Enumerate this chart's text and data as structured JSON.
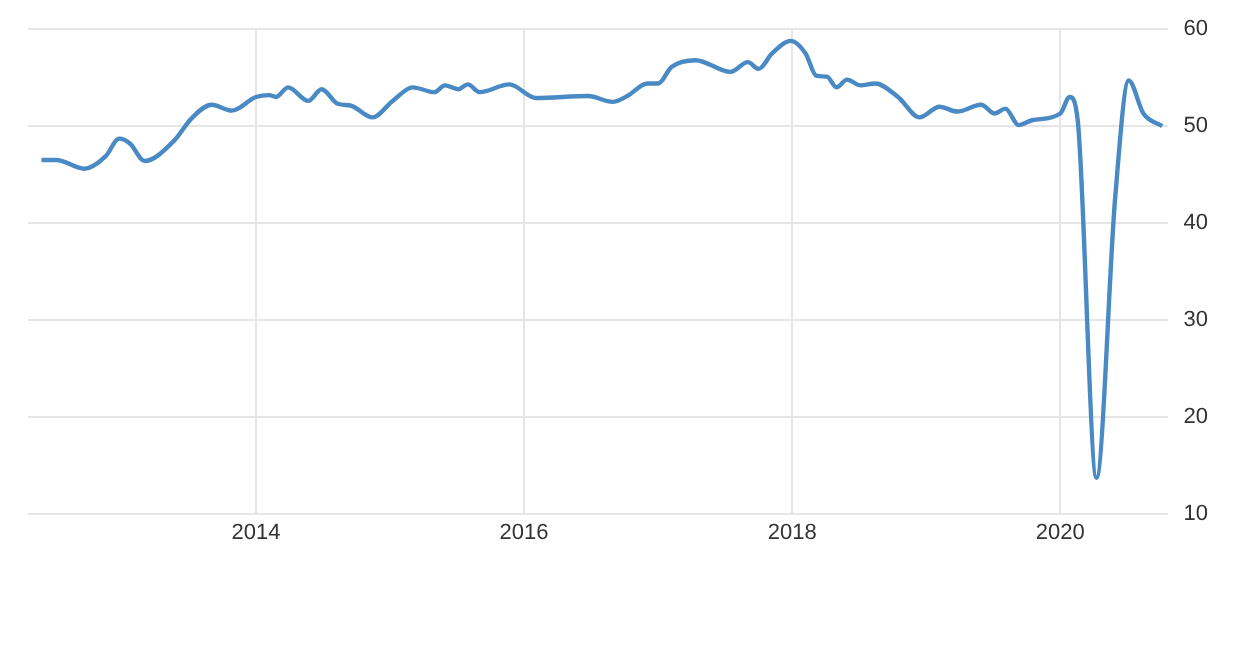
{
  "chart_data": {
    "type": "line",
    "xlim": [
      2012.3,
      2020.8
    ],
    "xticks": [
      2014,
      2016,
      2018,
      2020
    ],
    "ylim": [
      10,
      60
    ],
    "yticks": [
      10,
      20,
      30,
      40,
      50,
      60
    ],
    "grid": true,
    "legend": false,
    "marker": "none",
    "line_style": "solid",
    "series": [
      {
        "color": "#4a8ac4",
        "x": [
          2012.4,
          2012.51,
          2012.72,
          2012.88,
          2012.98,
          2013.06,
          2013.17,
          2013.39,
          2013.52,
          2013.67,
          2013.82,
          2014.0,
          2014.1,
          2014.15,
          2014.24,
          2014.39,
          2014.49,
          2014.61,
          2014.71,
          2014.87,
          2015.02,
          2015.17,
          2015.33,
          2015.41,
          2015.51,
          2015.58,
          2015.67,
          2015.89,
          2016.09,
          2016.48,
          2016.66,
          2016.77,
          2016.92,
          2017.0,
          2017.1,
          2017.28,
          2017.54,
          2017.67,
          2017.75,
          2017.85,
          2017.99,
          2018.1,
          2018.18,
          2018.26,
          2018.33,
          2018.41,
          2018.51,
          2018.62,
          2018.79,
          2018.95,
          2019.1,
          2019.23,
          2019.41,
          2019.51,
          2019.59,
          2019.69,
          2019.79,
          2020.0,
          2020.07,
          2020.13,
          2020.27,
          2020.41,
          2020.51,
          2020.62,
          2020.76
        ],
        "values": [
          46.5,
          46.5,
          45.6,
          46.9,
          48.7,
          48.2,
          46.4,
          48.5,
          50.8,
          52.2,
          51.6,
          53.0,
          53.2,
          53.0,
          54.0,
          52.6,
          53.8,
          52.3,
          52.1,
          50.9,
          52.6,
          54.0,
          53.5,
          54.2,
          53.8,
          54.3,
          53.5,
          54.3,
          52.9,
          53.1,
          52.5,
          53.1,
          54.4,
          54.4,
          56.1,
          56.8,
          55.6,
          56.6,
          55.9,
          57.5,
          58.8,
          57.5,
          55.2,
          55.1,
          54.0,
          54.8,
          54.2,
          54.4,
          53.0,
          50.9,
          52.0,
          51.5,
          52.2,
          51.3,
          51.8,
          50.1,
          50.6,
          51.3,
          53.0,
          50.6,
          13.7,
          42.7,
          54.7,
          51.3,
          50.0
        ]
      }
    ]
  }
}
